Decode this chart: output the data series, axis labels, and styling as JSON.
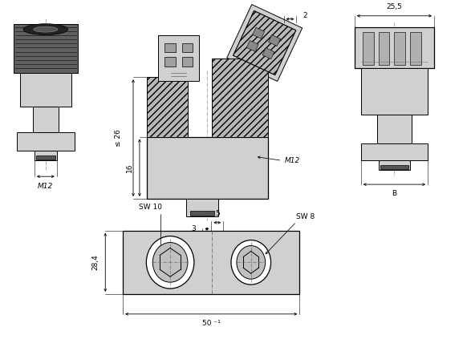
{
  "bg_color": "#ffffff",
  "part_color": "#d0d0d0",
  "hatch_fill": "#c0c0c0",
  "line_color": "#000000",
  "fig_width": 5.82,
  "fig_height": 4.23,
  "annotations": {
    "M12_left": "M12",
    "M12_center": "M12",
    "dim_26": "≤ 26",
    "dim_16": "16",
    "dim_2": "2",
    "dim_25_5": "25,5",
    "dim_B": "B",
    "SW10": "SW 10",
    "SW8": "SW 8",
    "dim_5": "5",
    "dim_3": "3",
    "dim_28_4": "28,4",
    "dim_50": "50 ⁻¹"
  }
}
